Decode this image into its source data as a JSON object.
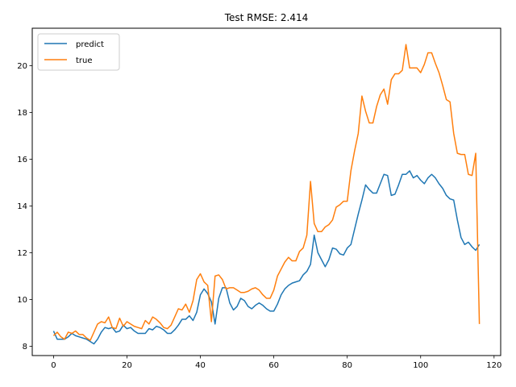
{
  "chart_data": {
    "type": "line",
    "title": "Test RMSE: 2.414",
    "xlabel": "",
    "ylabel": "",
    "xlim": [
      -5.8,
      121.8
    ],
    "ylim": [
      7.6,
      21.6
    ],
    "xticks": [
      0,
      20,
      40,
      60,
      80,
      100,
      120
    ],
    "yticks": [
      8,
      10,
      12,
      14,
      16,
      18,
      20
    ],
    "grid": false,
    "legend_position": "top-left",
    "x": [
      0,
      1,
      2,
      3,
      4,
      5,
      6,
      7,
      8,
      9,
      10,
      11,
      12,
      13,
      14,
      15,
      16,
      17,
      18,
      19,
      20,
      21,
      22,
      23,
      24,
      25,
      26,
      27,
      28,
      29,
      30,
      31,
      32,
      33,
      34,
      35,
      36,
      37,
      38,
      39,
      40,
      41,
      42,
      43,
      44,
      45,
      46,
      47,
      48,
      49,
      50,
      51,
      52,
      53,
      54,
      55,
      56,
      57,
      58,
      59,
      60,
      61,
      62,
      63,
      64,
      65,
      66,
      67,
      68,
      69,
      70,
      71,
      72,
      73,
      74,
      75,
      76,
      77,
      78,
      79,
      80,
      81,
      82,
      83,
      84,
      85,
      86,
      87,
      88,
      89,
      90,
      91,
      92,
      93,
      94,
      95,
      96,
      97,
      98,
      99,
      100,
      101,
      102,
      103,
      104,
      105,
      106,
      107,
      108,
      109,
      110,
      111,
      112,
      113,
      114,
      115,
      116
    ],
    "series": [
      {
        "name": "predict",
        "color": "#1f77b4",
        "values": [
          8.65,
          8.3,
          8.3,
          8.3,
          8.4,
          8.55,
          8.45,
          8.4,
          8.35,
          8.3,
          8.2,
          8.1,
          8.3,
          8.6,
          8.8,
          8.75,
          8.8,
          8.6,
          8.65,
          8.9,
          8.75,
          8.8,
          8.65,
          8.55,
          8.55,
          8.55,
          8.75,
          8.7,
          8.85,
          8.8,
          8.7,
          8.55,
          8.55,
          8.7,
          8.9,
          9.15,
          9.15,
          9.3,
          9.1,
          9.45,
          10.2,
          10.45,
          10.25,
          9.9,
          8.95,
          10.05,
          10.5,
          10.5,
          9.85,
          9.55,
          9.7,
          10.05,
          9.95,
          9.7,
          9.6,
          9.75,
          9.85,
          9.75,
          9.6,
          9.5,
          9.5,
          9.8,
          10.2,
          10.45,
          10.6,
          10.7,
          10.75,
          10.8,
          11.05,
          11.2,
          11.5,
          12.75,
          12.0,
          11.7,
          11.4,
          11.7,
          12.2,
          12.15,
          11.95,
          11.9,
          12.2,
          12.35,
          13.0,
          13.65,
          14.25,
          14.9,
          14.7,
          14.55,
          14.55,
          14.95,
          15.35,
          15.3,
          14.45,
          14.5,
          14.9,
          15.35,
          15.35,
          15.5,
          15.2,
          15.3,
          15.1,
          14.95,
          15.2,
          15.35,
          15.2,
          14.95,
          14.75,
          14.45,
          14.3,
          14.25,
          13.4,
          12.65,
          12.35,
          12.45,
          12.25,
          12.1,
          12.35
        ]
      },
      {
        "name": "true",
        "color": "#ff7f0e",
        "values": [
          8.45,
          8.6,
          8.4,
          8.3,
          8.6,
          8.55,
          8.65,
          8.5,
          8.5,
          8.35,
          8.25,
          8.6,
          8.95,
          9.05,
          9.0,
          9.25,
          8.8,
          8.75,
          9.2,
          8.85,
          9.05,
          8.95,
          8.85,
          8.8,
          8.75,
          9.1,
          8.95,
          9.25,
          9.15,
          9.0,
          8.8,
          8.75,
          8.9,
          9.25,
          9.6,
          9.55,
          9.8,
          9.45,
          9.95,
          10.85,
          11.1,
          10.75,
          10.6,
          9.05,
          11.0,
          11.05,
          10.85,
          10.45,
          10.5,
          10.5,
          10.4,
          10.3,
          10.3,
          10.35,
          10.45,
          10.5,
          10.4,
          10.2,
          10.05,
          10.05,
          10.4,
          11.0,
          11.3,
          11.6,
          11.8,
          11.65,
          11.65,
          12.05,
          12.2,
          12.75,
          15.05,
          13.25,
          12.9,
          12.9,
          13.1,
          13.2,
          13.4,
          13.95,
          14.05,
          14.2,
          14.2,
          15.5,
          16.35,
          17.1,
          18.7,
          18.05,
          17.55,
          17.55,
          18.25,
          18.75,
          19.0,
          18.35,
          19.4,
          19.65,
          19.65,
          19.8,
          20.9,
          19.9,
          19.9,
          19.9,
          19.7,
          20.05,
          20.55,
          20.55,
          20.1,
          19.7,
          19.15,
          18.55,
          18.45,
          17.1,
          16.25,
          16.2,
          16.2,
          15.35,
          15.3,
          16.25,
          8.95
        ]
      }
    ]
  }
}
